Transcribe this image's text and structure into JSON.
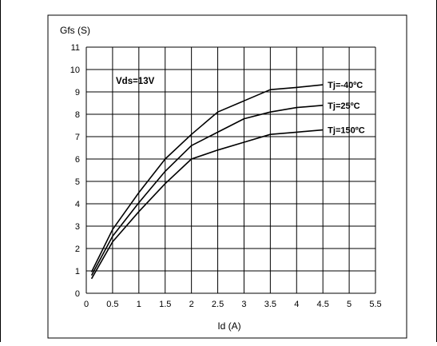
{
  "chart_data": {
    "type": "line",
    "title": "",
    "xlabel": "Id (A)",
    "ylabel": "Gfs (S)",
    "xlim": [
      0,
      5.5
    ],
    "ylim": [
      0,
      11
    ],
    "xticks": [
      "0",
      "0.5",
      "1",
      "1.5",
      "2",
      "2.5",
      "3",
      "3.5",
      "4",
      "4.5",
      "5",
      "5.5"
    ],
    "yticks": [
      "0",
      "1",
      "2",
      "3",
      "4",
      "5",
      "6",
      "7",
      "8",
      "9",
      "10",
      "11"
    ],
    "grid": true,
    "annotation": "Vds=13V",
    "series": [
      {
        "name": "Tj=-40ºC",
        "x": [
          0.1,
          0.5,
          1,
          1.5,
          2,
          2.5,
          3,
          3.5,
          4,
          4.5
        ],
        "y": [
          0.95,
          2.85,
          4.5,
          6.0,
          7.1,
          8.1,
          8.6,
          9.1,
          9.2,
          9.32
        ]
      },
      {
        "name": "Tj=25ºC",
        "x": [
          0.1,
          0.5,
          1,
          1.5,
          2,
          2.5,
          3,
          3.5,
          4,
          4.5
        ],
        "y": [
          0.8,
          2.55,
          4.05,
          5.45,
          6.6,
          7.2,
          7.8,
          8.1,
          8.3,
          8.4
        ]
      },
      {
        "name": "Tj=150ºC",
        "x": [
          0.1,
          0.5,
          1,
          1.5,
          2,
          2.5,
          3,
          3.5,
          4,
          4.5
        ],
        "y": [
          0.65,
          2.3,
          3.65,
          4.9,
          6.0,
          6.4,
          6.75,
          7.1,
          7.2,
          7.3
        ]
      }
    ],
    "colors": {
      "line": "#000000",
      "grid": "#000000",
      "frame": "#000000"
    }
  }
}
